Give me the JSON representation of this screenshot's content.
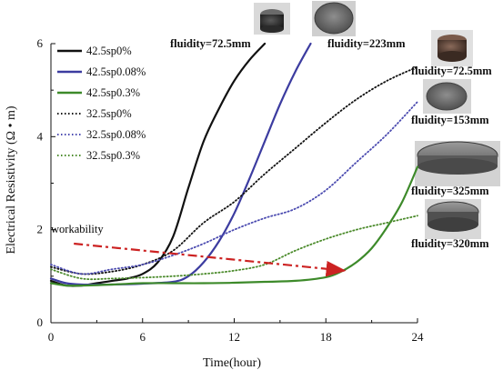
{
  "chart_data": {
    "type": "line",
    "xlabel": "Time(hour)",
    "ylabel": "Electrical Resistivity (Ω • m)",
    "xlim": [
      0,
      24
    ],
    "ylim": [
      0,
      6
    ],
    "xticks": [
      "0",
      "6",
      "12",
      "18",
      "24"
    ],
    "yticks": [
      "0",
      "2",
      "4",
      "6"
    ],
    "grid": false,
    "legend_position": "top-left",
    "series": [
      {
        "name": "42.5sp0%",
        "color": "#111111",
        "dash": "solid",
        "x": [
          0,
          1,
          2,
          3,
          4,
          5,
          6,
          7,
          8,
          9,
          10,
          11,
          12,
          13,
          14
        ],
        "y": [
          0.9,
          0.8,
          0.8,
          0.85,
          0.9,
          0.95,
          1.05,
          1.3,
          1.85,
          2.9,
          3.9,
          4.6,
          5.2,
          5.65,
          6.0
        ]
      },
      {
        "name": "42.5sp0.08%",
        "color": "#3c3ca0",
        "dash": "solid",
        "x": [
          0,
          1,
          2,
          3,
          4,
          6,
          8,
          9,
          10,
          11,
          12,
          13,
          14,
          15,
          16,
          17
        ],
        "y": [
          0.95,
          0.85,
          0.82,
          0.82,
          0.82,
          0.84,
          0.88,
          1.0,
          1.3,
          1.75,
          2.35,
          3.1,
          3.9,
          4.7,
          5.4,
          6.0
        ]
      },
      {
        "name": "42.5sp0.3%",
        "color": "#3d8a2a",
        "dash": "solid",
        "x": [
          0,
          1,
          2,
          4,
          6,
          8,
          10,
          12,
          14,
          16,
          18,
          19,
          20,
          21,
          22,
          23,
          24
        ],
        "y": [
          0.85,
          0.8,
          0.8,
          0.82,
          0.85,
          0.85,
          0.85,
          0.86,
          0.88,
          0.9,
          0.98,
          1.1,
          1.3,
          1.6,
          2.05,
          2.6,
          3.35
        ]
      },
      {
        "name": "32.5sp0%",
        "color": "#111111",
        "dash": "dotted",
        "x": [
          0,
          2,
          4,
          6,
          8,
          10,
          12,
          14,
          16,
          18,
          20,
          22,
          24
        ],
        "y": [
          1.2,
          1.05,
          1.1,
          1.25,
          1.55,
          2.15,
          2.6,
          3.2,
          3.75,
          4.3,
          4.8,
          5.2,
          5.5
        ]
      },
      {
        "name": "32.5sp0.08%",
        "color": "#4b4bb0",
        "dash": "dotted",
        "x": [
          0,
          2,
          4,
          6,
          8,
          10,
          12,
          14,
          16,
          18,
          20,
          22,
          24
        ],
        "y": [
          1.25,
          1.05,
          1.15,
          1.25,
          1.45,
          1.7,
          2.0,
          2.25,
          2.45,
          2.85,
          3.45,
          4.05,
          4.75
        ]
      },
      {
        "name": "32.5sp0.3%",
        "color": "#4a8a2a",
        "dash": "dotted",
        "x": [
          0,
          2,
          4,
          6,
          8,
          10,
          12,
          14,
          16,
          18,
          20,
          22,
          24
        ],
        "y": [
          1.15,
          0.95,
          0.95,
          0.97,
          1.0,
          1.05,
          1.12,
          1.25,
          1.55,
          1.8,
          2.0,
          2.15,
          2.3
        ]
      }
    ],
    "annotations": [
      {
        "text": "fluidity=72.5mm"
      },
      {
        "text": "fluidity=223mm"
      },
      {
        "text": "fluidity=72.5mm"
      },
      {
        "text": "fluidity=153mm"
      },
      {
        "text": "fluidity=325mm"
      },
      {
        "text": "fluidity=320mm"
      },
      {
        "text": "workability"
      }
    ],
    "workability_arrow": {
      "color": "#cc2222",
      "from": {
        "x": 1.5,
        "y": 1.7
      },
      "to": {
        "x": 19.2,
        "y": 1.12
      }
    }
  }
}
